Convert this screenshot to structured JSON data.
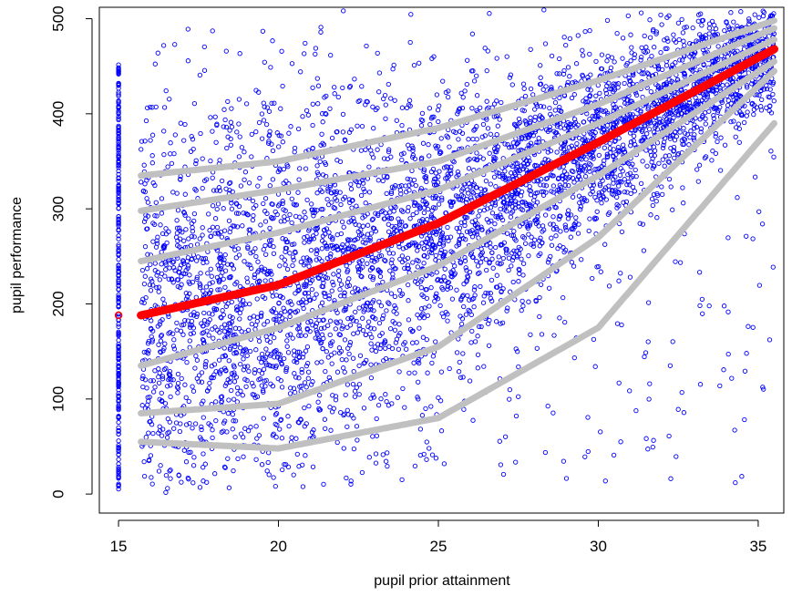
{
  "chart_data": {
    "type": "scatter",
    "title": "",
    "xlabel": "pupil prior attainment",
    "ylabel": "pupil performance",
    "xlim": [
      14.4,
      35.8
    ],
    "ylim": [
      -20,
      512
    ],
    "x_ticks": [
      15,
      20,
      25,
      30,
      35
    ],
    "y_ticks": [
      0,
      100,
      200,
      300,
      400,
      500
    ],
    "grid": false,
    "legend": "none",
    "colors": {
      "points": "#0000ff",
      "quantile_curves": "#c0c0c0",
      "median_curve": "#ff0000",
      "axis": "#000000"
    },
    "scatter_summary": {
      "x_range": [
        15,
        35.5
      ],
      "y_range": [
        0,
        510
      ],
      "column_at_x15": {
        "x": 15,
        "y_min": 5,
        "y_max": 452
      }
    },
    "series": [
      {
        "role": "quantile-curve",
        "color": "#c0c0c0",
        "x": [
          15.7,
          20,
          25,
          30,
          35.5
        ],
        "values": [
          55,
          48,
          80,
          175,
          390
        ]
      },
      {
        "role": "quantile-curve",
        "color": "#c0c0c0",
        "x": [
          15.7,
          20,
          25,
          30,
          35.5
        ],
        "values": [
          85,
          95,
          155,
          270,
          445
        ]
      },
      {
        "role": "quantile-curve",
        "color": "#c0c0c0",
        "x": [
          15.7,
          20,
          25,
          30,
          35.5
        ],
        "values": [
          135,
          175,
          240,
          335,
          455
        ]
      },
      {
        "role": "median-curve",
        "color": "#ff0000",
        "x": [
          15.7,
          20,
          25,
          30,
          35.5
        ],
        "values": [
          188,
          220,
          285,
          370,
          468
        ]
      },
      {
        "role": "quantile-curve",
        "color": "#c0c0c0",
        "x": [
          15.7,
          20,
          25,
          30,
          35.5
        ],
        "values": [
          245,
          275,
          320,
          390,
          478
        ]
      },
      {
        "role": "quantile-curve",
        "color": "#c0c0c0",
        "x": [
          15.7,
          20,
          25,
          30,
          35.5
        ],
        "values": [
          298,
          320,
          350,
          410,
          490
        ]
      },
      {
        "role": "quantile-curve",
        "color": "#c0c0c0",
        "x": [
          15.7,
          20,
          25,
          30,
          35.5
        ],
        "values": [
          335,
          350,
          385,
          435,
          498
        ]
      }
    ]
  }
}
